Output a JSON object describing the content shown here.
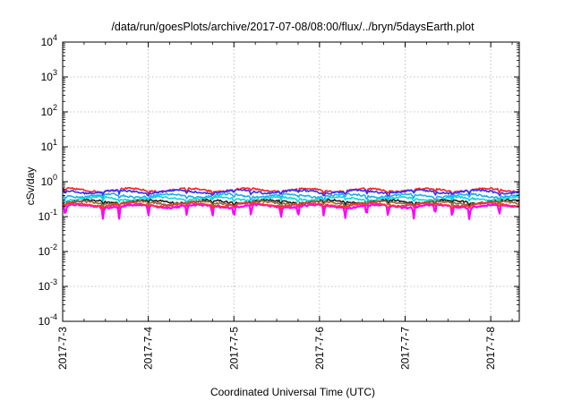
{
  "chart_data": {
    "type": "line",
    "title": "/data/run/goesPlots/archive/2017-07-08/08:00/flux/../bryn/5daysEarth.plot",
    "xlabel": "Coordinated Universal Time (UTC)",
    "ylabel": "cSv/day",
    "y_scale": "log",
    "ylim": [
      0.0001,
      10000
    ],
    "y_ticks": [
      {
        "value": 0.0001,
        "base": "10",
        "exp": "-4"
      },
      {
        "value": 0.001,
        "base": "10",
        "exp": "-3"
      },
      {
        "value": 0.01,
        "base": "10",
        "exp": "-2"
      },
      {
        "value": 0.1,
        "base": "10",
        "exp": "-1"
      },
      {
        "value": 1,
        "base": "10",
        "exp": "0"
      },
      {
        "value": 10,
        "base": "10",
        "exp": "1"
      },
      {
        "value": 100,
        "base": "10",
        "exp": "2"
      },
      {
        "value": 1000,
        "base": "10",
        "exp": "3"
      },
      {
        "value": 10000,
        "base": "10",
        "exp": "4"
      }
    ],
    "x_ticks": [
      "2017-7-3",
      "2017-7-4",
      "2017-7-5",
      "2017-7-6",
      "2017-7-7",
      "2017-7-8"
    ],
    "xlim": [
      "2017-07-03 00:00",
      "2017-07-08 08:00"
    ],
    "grid": true,
    "series": [
      {
        "color": "#ff00ff",
        "level": 0.2,
        "dips": true
      },
      {
        "color": "#ff2020",
        "level": 0.58
      },
      {
        "color": "#3030ff",
        "level": 0.52
      },
      {
        "color": "#22aaee",
        "level": 0.4
      },
      {
        "color": "#00dddd",
        "level": 0.33
      },
      {
        "color": "#202020",
        "level": 0.27
      },
      {
        "color": "#996633",
        "level": 0.25
      },
      {
        "color": "#ff3333",
        "level": 0.22
      }
    ]
  }
}
